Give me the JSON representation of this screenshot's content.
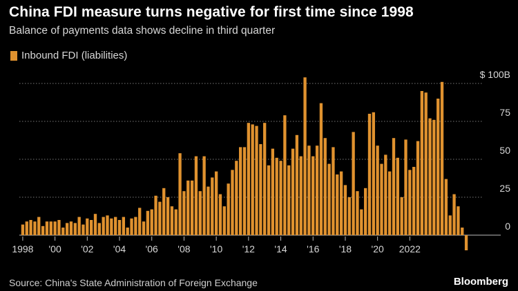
{
  "header": {
    "title": "China FDI measure turns negative for first time since 1998",
    "subtitle": "Balance of payments data shows decline in third quarter"
  },
  "legend": {
    "label": "Inbound FDI (liabilities)"
  },
  "footer": {
    "source": "Source: China's State Administration of Foreign Exchange",
    "brand": "Bloomberg"
  },
  "colors": {
    "bar": "#e0922f",
    "grid": "#7a7a7a",
    "axis_text": "#d8d8d8",
    "background": "#000000"
  },
  "chart_data": {
    "type": "bar",
    "title": "China FDI measure turns negative for first time since 1998",
    "subtitle": "Balance of payments data shows decline in third quarter",
    "unit": "$ billions",
    "ylim": [
      -12,
      103
    ],
    "yticks": [
      {
        "value": 100,
        "label": "$ 100B"
      },
      {
        "value": 75,
        "label": "75"
      },
      {
        "value": 50,
        "label": "50"
      },
      {
        "value": 25,
        "label": "25"
      },
      {
        "value": 0,
        "label": "0"
      }
    ],
    "xticks": [
      {
        "year": 1998,
        "label": "1998"
      },
      {
        "year": 2000,
        "label": "'00"
      },
      {
        "year": 2002,
        "label": "'02"
      },
      {
        "year": 2004,
        "label": "'04"
      },
      {
        "year": 2006,
        "label": "'06"
      },
      {
        "year": 2008,
        "label": "'08"
      },
      {
        "year": 2010,
        "label": "'10"
      },
      {
        "year": 2012,
        "label": "'12"
      },
      {
        "year": 2014,
        "label": "'14"
      },
      {
        "year": 2016,
        "label": "'16"
      },
      {
        "year": 2018,
        "label": "'18"
      },
      {
        "year": 2020,
        "label": "'20"
      },
      {
        "year": 2022,
        "label": "2022"
      }
    ],
    "start_year": 1998,
    "grid": true,
    "legend_position": "top-left",
    "series": [
      {
        "name": "Inbound FDI (liabilities)",
        "frequency": "quarterly",
        "start": "1998 Q1",
        "values": [
          7,
          9,
          10,
          9,
          12,
          6,
          9,
          9,
          9,
          10,
          5,
          8,
          9,
          8,
          12,
          7,
          11,
          10,
          14,
          8,
          12,
          13,
          11,
          12,
          10,
          12,
          5,
          11,
          12,
          18,
          9,
          16,
          17,
          26,
          22,
          31,
          25,
          19,
          17,
          54,
          29,
          36,
          36,
          52,
          29,
          52,
          32,
          38,
          42,
          27,
          19,
          34,
          43,
          49,
          58,
          58,
          74,
          73,
          72,
          60,
          74,
          46,
          57,
          51,
          49,
          79,
          46,
          57,
          66,
          52,
          104,
          59,
          52,
          59,
          87,
          64,
          47,
          58,
          40,
          42,
          33,
          25,
          68,
          29,
          17,
          31,
          80,
          81,
          59,
          47,
          53,
          42,
          64,
          51,
          25,
          63,
          43,
          45,
          62,
          95,
          94,
          77,
          76,
          90,
          101,
          37,
          13,
          27,
          19,
          5,
          -10
        ]
      }
    ]
  }
}
